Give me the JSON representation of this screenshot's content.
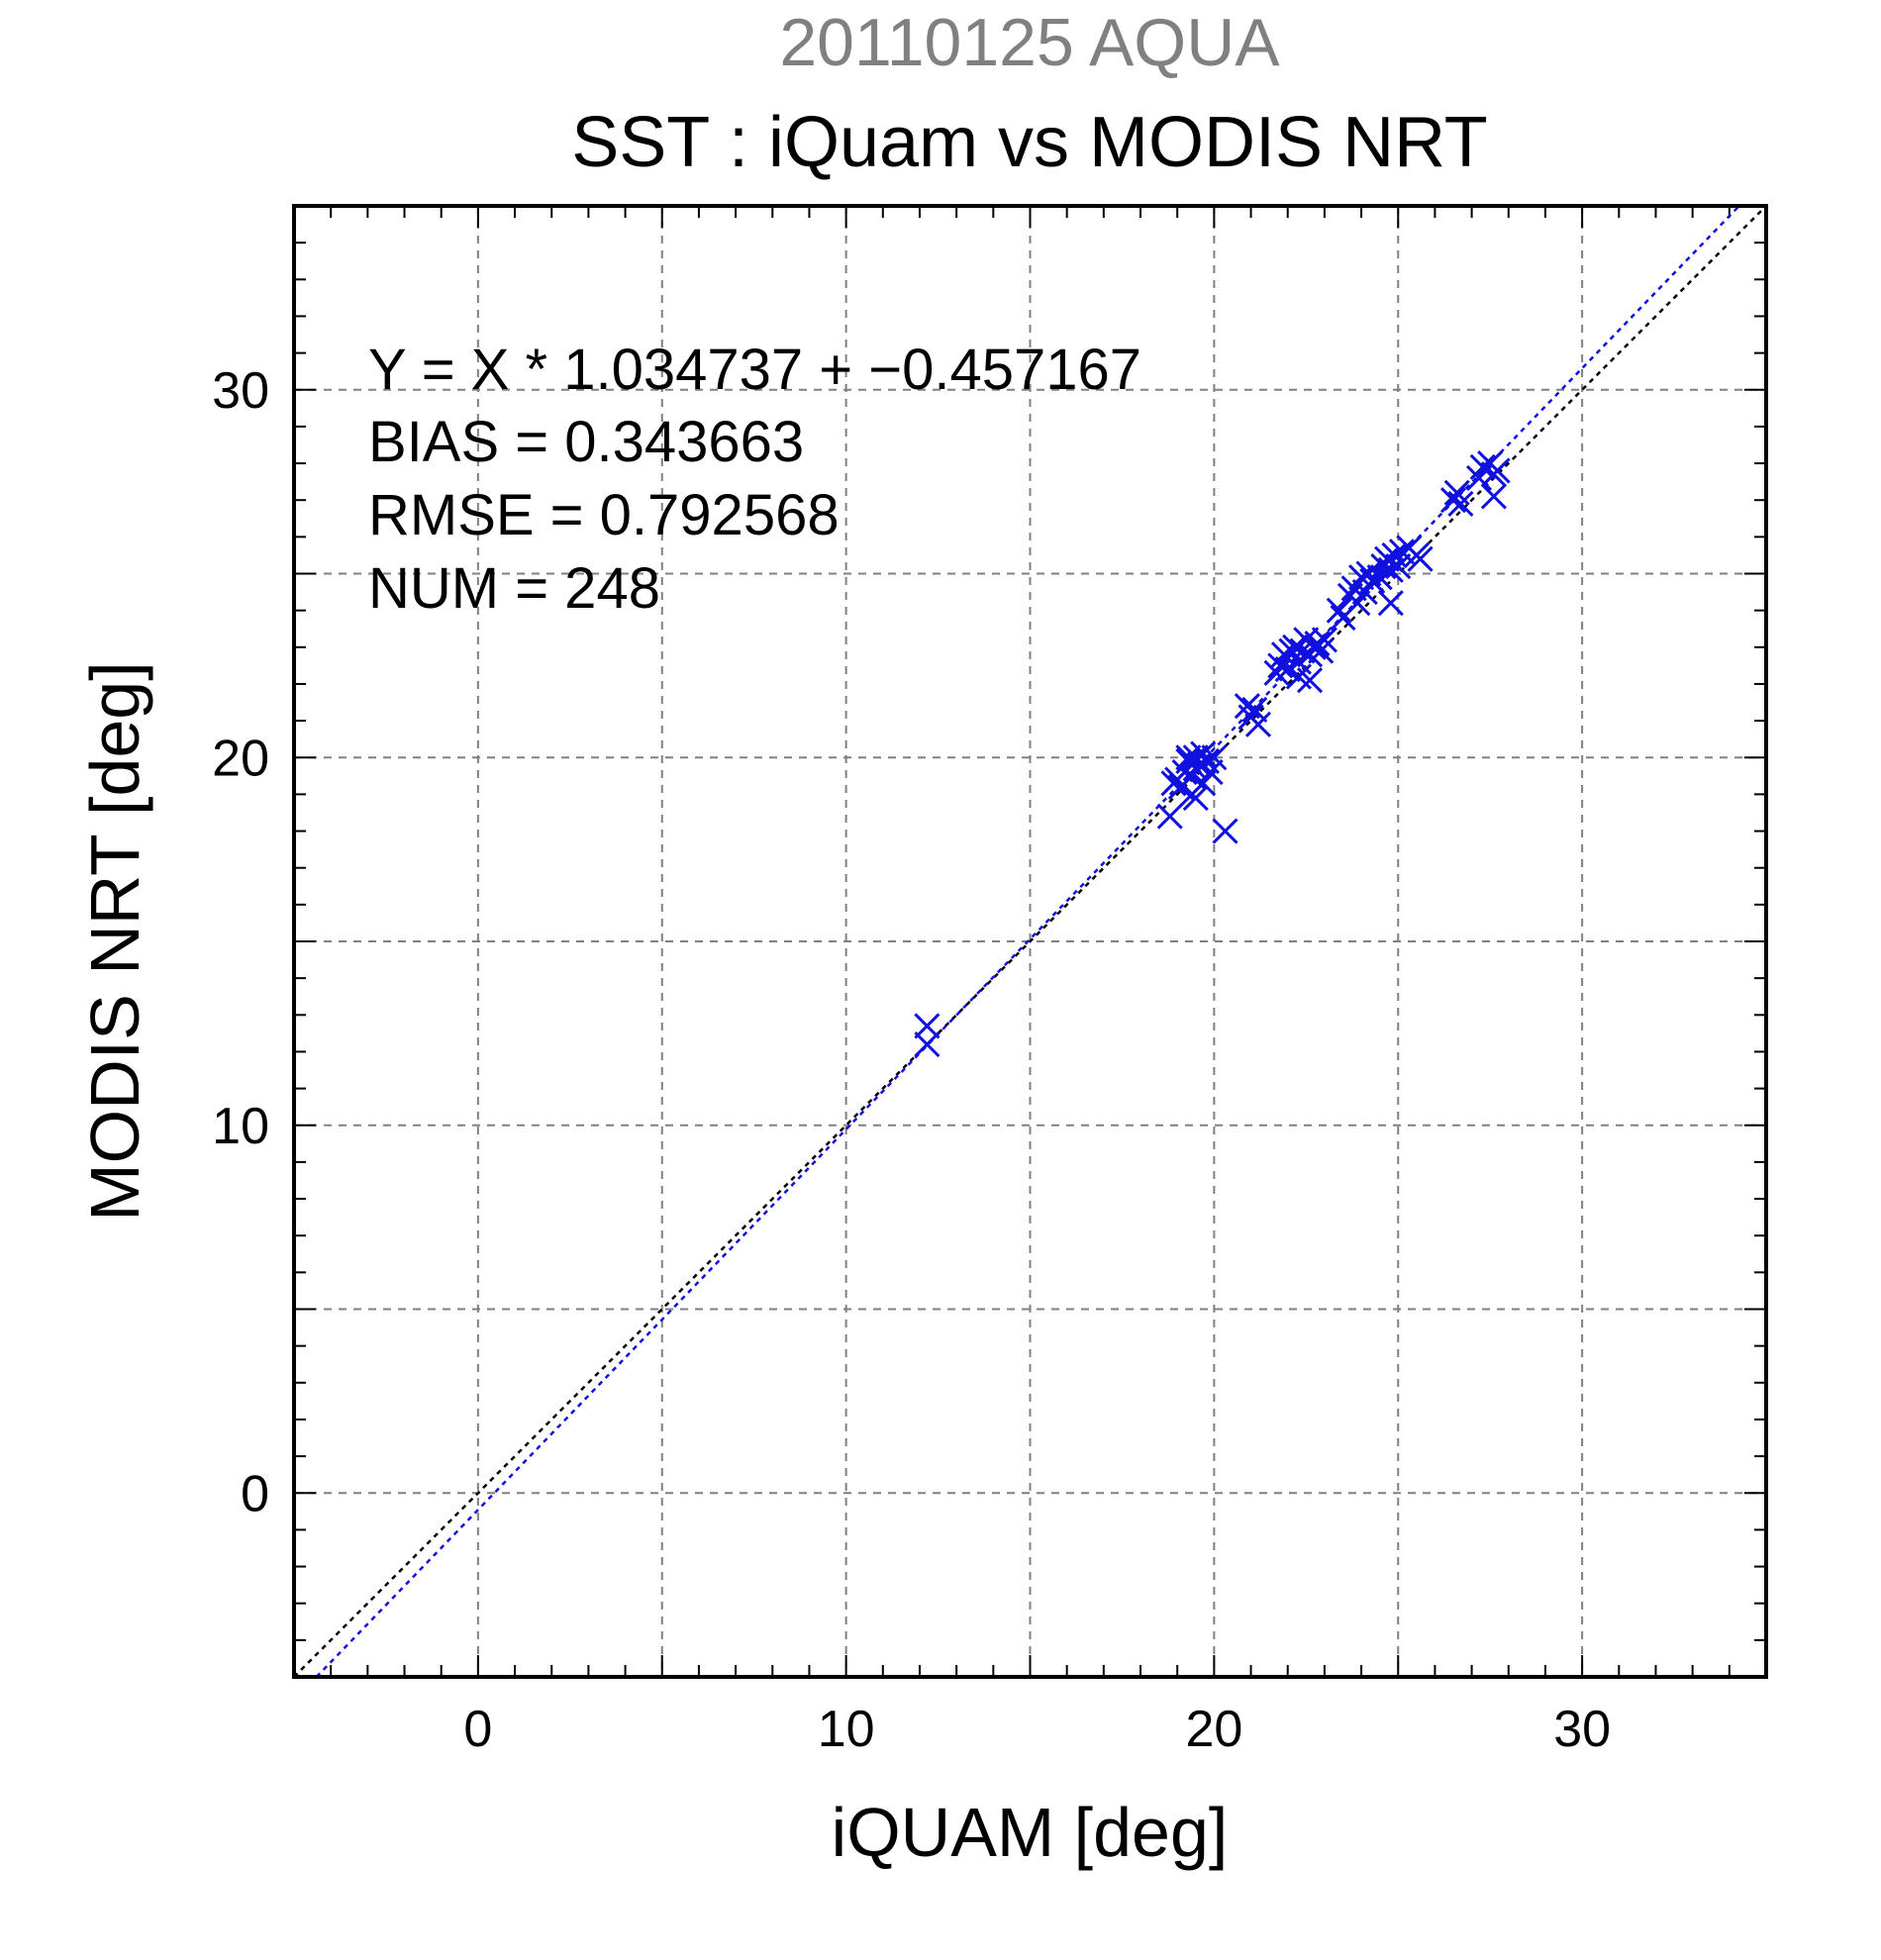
{
  "chart_data": {
    "type": "scatter",
    "title": "20110125 AQUA",
    "subtitle": "SST : iQuam vs MODIS NRT",
    "xlabel": "iQUAM [deg]",
    "ylabel": "MODIS NRT [deg]",
    "xlim": [
      -5,
      35
    ],
    "ylim": [
      -5,
      35
    ],
    "xticks": [
      "0",
      "10",
      "20",
      "30"
    ],
    "yticks": [
      "0",
      "10",
      "20",
      "30"
    ],
    "grid": true,
    "annotations": [
      "Y = X * 1.034737 + −0.457167",
      "BIAS = 0.343663",
      "RMSE = 0.792568",
      "NUM = 248"
    ],
    "regression": {
      "slope": 1.034737,
      "intercept": -0.457167
    },
    "marker": "x",
    "colors": {
      "points": "#1010e0",
      "fit_line": "#1010e0",
      "identity_line": "#000000",
      "grid": "#808080"
    },
    "series": [
      {
        "x": [
          12.2,
          12.2,
          18.8,
          18.9,
          19.0,
          19.1,
          19.2,
          19.3,
          19.3,
          19.4,
          19.5,
          19.5,
          19.6,
          19.7,
          19.8,
          19.9,
          20.0,
          19.4,
          19.5,
          19.7,
          20.3,
          20.9,
          21.0,
          21.2,
          21.1,
          21.7,
          21.8,
          21.9,
          22.0,
          22.1,
          22.2,
          22.3,
          22.4,
          22.5,
          22.6,
          22.7,
          22.8,
          22.9,
          23.0,
          22.3,
          22.6,
          23.4,
          23.5,
          23.7,
          23.8,
          23.9,
          24.0,
          24.1,
          24.2,
          24.3,
          24.5,
          24.6,
          24.7,
          24.8,
          24.9,
          25.0,
          25.1,
          25.3,
          25.5,
          25.6,
          24.8,
          26.5,
          26.6,
          26.7,
          27.2,
          27.3,
          27.5,
          27.6,
          27.7,
          27.6
        ],
        "y": [
          12.7,
          12.2,
          18.4,
          19.3,
          19.4,
          19.2,
          19.6,
          19.9,
          20.0,
          19.5,
          19.7,
          20.0,
          19.8,
          20.1,
          19.9,
          19.6,
          20.0,
          19.0,
          18.9,
          19.3,
          18.0,
          21.4,
          21.1,
          20.9,
          21.3,
          22.3,
          22.5,
          22.8,
          22.4,
          22.9,
          23.0,
          22.6,
          22.9,
          23.2,
          22.8,
          23.0,
          23.1,
          22.9,
          23.2,
          22.2,
          22.1,
          24.0,
          23.8,
          24.4,
          24.6,
          24.2,
          24.9,
          24.5,
          25.0,
          24.8,
          24.9,
          25.2,
          25.4,
          25.1,
          25.5,
          25.2,
          25.6,
          25.7,
          25.5,
          25.4,
          24.2,
          27.0,
          27.2,
          26.9,
          27.6,
          27.9,
          28.0,
          27.7,
          27.8,
          27.1
        ]
      }
    ]
  }
}
